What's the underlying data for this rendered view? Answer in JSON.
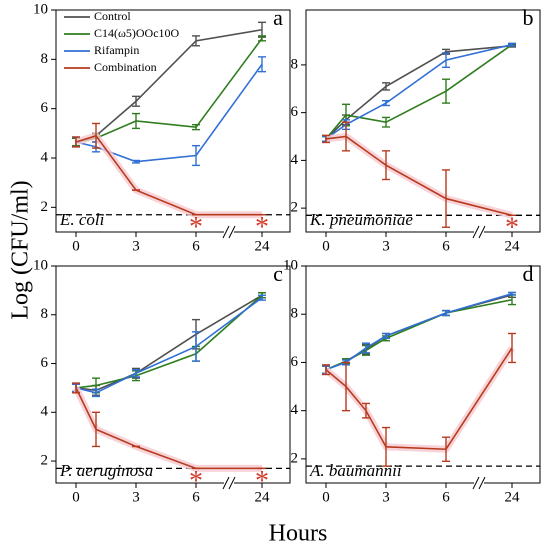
{
  "ylabel": "Log (CFU/ml)",
  "xlabel": "Hours",
  "chart_data": [
    {
      "type": "line",
      "panel_label": "a",
      "annotation": "E. coli",
      "x": [
        0,
        1,
        3,
        6,
        24
      ],
      "xticks": [
        0,
        3,
        6,
        24
      ],
      "axis_break": [
        6,
        24
      ],
      "ylim": [
        1,
        10
      ],
      "yticks": [
        2,
        4,
        6,
        8,
        10
      ],
      "legend": "upper left",
      "detection_limit": 1.7,
      "significance": {
        "label": "*",
        "x": [
          6,
          24
        ]
      },
      "series": [
        {
          "name": "Control",
          "color": "#505050",
          "values": [
            4.65,
            4.9,
            6.3,
            8.75,
            9.2
          ],
          "errors": [
            0.15,
            0.1,
            0.2,
            0.2,
            0.3
          ]
        },
        {
          "name": "C14(ω5)OOc10O",
          "color": "#2e7d1e",
          "values": [
            4.65,
            4.8,
            5.5,
            5.25,
            8.85
          ],
          "errors": [
            0.15,
            0.15,
            0.3,
            0.1,
            0.1
          ]
        },
        {
          "name": "Rifampin",
          "color": "#2f6fd6",
          "values": [
            4.65,
            4.45,
            3.85,
            4.1,
            7.8
          ],
          "errors": [
            0.2,
            0.2,
            0.05,
            0.4,
            0.3
          ]
        },
        {
          "name": "Combination",
          "color": "#b83a1e",
          "values": [
            4.65,
            4.9,
            2.7,
            1.7,
            1.7
          ],
          "errors": [
            0.2,
            0.5,
            0,
            0,
            0
          ]
        }
      ]
    },
    {
      "type": "line",
      "panel_label": "b",
      "annotation": "K. pneumoniae",
      "x": [
        0,
        1,
        3,
        6,
        24
      ],
      "xticks": [
        0,
        3,
        6,
        24
      ],
      "axis_break": [
        6,
        24
      ],
      "ylim": [
        1,
        10.3
      ],
      "yticks": [
        2,
        4,
        6,
        8
      ],
      "detection_limit": 1.7,
      "significance": {
        "label": "*",
        "x": [
          24
        ]
      },
      "series": [
        {
          "color": "#505050",
          "values": [
            4.9,
            5.7,
            7.1,
            8.55,
            8.8
          ],
          "errors": [
            0.1,
            0.2,
            0.15,
            0.1,
            0.05
          ]
        },
        {
          "color": "#2e7d1e",
          "values": [
            4.9,
            5.9,
            5.6,
            6.9,
            8.85
          ],
          "errors": [
            0.1,
            0.45,
            0.2,
            0.5,
            0.05
          ]
        },
        {
          "color": "#2f6fd6",
          "values": [
            4.9,
            5.5,
            6.4,
            8.2,
            8.85
          ],
          "errors": [
            0.1,
            0.2,
            0.1,
            0.3,
            0.05
          ]
        },
        {
          "color": "#b83a1e",
          "values": [
            4.9,
            5.0,
            3.8,
            2.4,
            1.7
          ],
          "errors": [
            0.15,
            0.6,
            0.6,
            1.2,
            0
          ]
        }
      ]
    },
    {
      "type": "line",
      "panel_label": "c",
      "annotation": "P. aeruginosa",
      "x": [
        0,
        1,
        3,
        6,
        24
      ],
      "xticks": [
        0,
        3,
        6,
        24
      ],
      "axis_break": [
        6,
        24
      ],
      "ylim": [
        1.1,
        10
      ],
      "yticks": [
        2,
        4,
        6,
        8,
        10
      ],
      "detection_limit": 1.7,
      "significance": {
        "label": "*",
        "x": [
          6,
          24
        ]
      },
      "series": [
        {
          "color": "#505050",
          "values": [
            5.0,
            4.9,
            5.6,
            7.2,
            8.8
          ],
          "errors": [
            0.15,
            0.2,
            0.2,
            0.6,
            0.1
          ]
        },
        {
          "color": "#2e7d1e",
          "values": [
            5.0,
            5.1,
            5.5,
            6.4,
            8.8
          ],
          "errors": [
            0.15,
            0.3,
            0.2,
            0.3,
            0.1
          ]
        },
        {
          "color": "#2f6fd6",
          "values": [
            5.0,
            4.8,
            5.6,
            6.7,
            8.7
          ],
          "errors": [
            0.15,
            0.15,
            0.15,
            0.6,
            0.1
          ]
        },
        {
          "color": "#b83a1e",
          "values": [
            5.0,
            3.3,
            2.6,
            1.7,
            1.7
          ],
          "errors": [
            0.2,
            0.7,
            0,
            0,
            0
          ]
        }
      ]
    },
    {
      "type": "line",
      "panel_label": "d",
      "annotation": "A. baumannii",
      "x": [
        0,
        1,
        2,
        3,
        6,
        24
      ],
      "xticks": [
        0,
        3,
        6,
        24
      ],
      "axis_break": [
        6,
        24
      ],
      "ylim": [
        1,
        10
      ],
      "yticks": [
        2,
        4,
        6,
        8,
        10
      ],
      "detection_limit": 1.7,
      "series": [
        {
          "color": "#505050",
          "values": [
            5.7,
            6.05,
            6.55,
            7.1,
            8.05,
            8.8
          ],
          "errors": [
            0.15,
            0.1,
            0.2,
            0.1,
            0.1,
            0.1
          ]
        },
        {
          "color": "#2e7d1e",
          "values": [
            5.7,
            6.05,
            6.5,
            7.0,
            8.05,
            8.6
          ],
          "errors": [
            0.15,
            0.1,
            0.2,
            0.1,
            0.1,
            0.2
          ]
        },
        {
          "color": "#2f6fd6",
          "values": [
            5.7,
            6.0,
            6.6,
            7.1,
            8.05,
            8.85
          ],
          "errors": [
            0.15,
            0.1,
            0.2,
            0.1,
            0.1,
            0.05
          ]
        },
        {
          "color": "#b83a1e",
          "values": [
            5.7,
            5.0,
            4.0,
            2.5,
            2.4,
            6.6
          ],
          "errors": [
            0.2,
            1.0,
            0.3,
            0.8,
            0.5,
            0.6
          ]
        }
      ]
    }
  ]
}
